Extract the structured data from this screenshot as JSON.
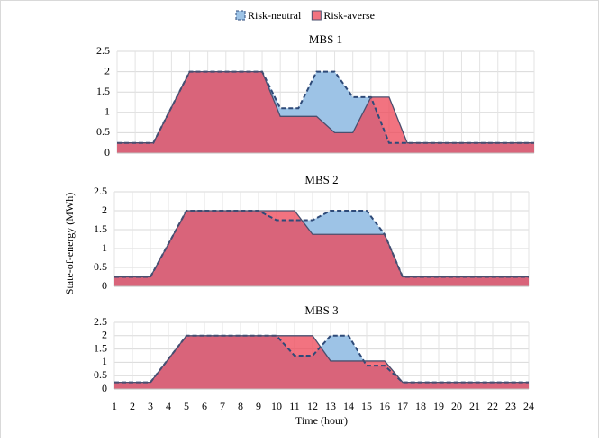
{
  "chart_data": [
    {
      "type": "area",
      "title": "MBS 1",
      "x": [
        1,
        2,
        3,
        4,
        5,
        6,
        7,
        8,
        9,
        10,
        11,
        12,
        13,
        14,
        15,
        16,
        17,
        18,
        19,
        20,
        21,
        22,
        23,
        24
      ],
      "xlim": [
        1,
        24
      ],
      "ylim": [
        0,
        2.5
      ],
      "yticks": [
        0,
        0.5,
        1,
        1.5,
        2,
        2.5
      ],
      "grid": true,
      "legend": "top",
      "series": [
        {
          "name": "Risk-neutral",
          "color": "#9dc3e6",
          "line_color": "#2e4a78",
          "line_style": "dashed",
          "values": [
            0.25,
            0.25,
            0.25,
            1.125,
            2,
            2,
            2,
            2,
            2,
            1.1,
            1.1,
            2,
            2,
            1.375,
            1.375,
            0.25,
            0.25,
            0.25,
            0.25,
            0.25,
            0.25,
            0.25,
            0.25,
            0.25
          ]
        },
        {
          "name": "Risk-averse",
          "color": "#ee4455",
          "line_color": "#4a4f6e",
          "line_style": "solid",
          "values": [
            0.25,
            0.25,
            0.25,
            1.125,
            2,
            2,
            2,
            2,
            2,
            0.9,
            0.9,
            0.9,
            0.5,
            0.5,
            1.375,
            1.375,
            0.25,
            0.25,
            0.25,
            0.25,
            0.25,
            0.25,
            0.25,
            0.25
          ]
        }
      ]
    },
    {
      "type": "area",
      "title": "MBS 2",
      "ylabel": "State-of-energy (MWh)",
      "x": [
        1,
        2,
        3,
        4,
        5,
        6,
        7,
        8,
        9,
        10,
        11,
        12,
        13,
        14,
        15,
        16,
        17,
        18,
        19,
        20,
        21,
        22,
        23,
        24
      ],
      "xlim": [
        1,
        24
      ],
      "ylim": [
        0,
        2.5
      ],
      "yticks": [
        0,
        0.5,
        1,
        1.5,
        2,
        2.5
      ],
      "grid": true,
      "series": [
        {
          "color": "#9dc3e6",
          "line_color": "#2e4a78",
          "line_style": "dashed",
          "values": [
            0.25,
            0.25,
            0.25,
            1.125,
            2,
            2,
            2,
            2,
            2,
            1.75,
            1.75,
            1.75,
            2,
            2,
            2,
            1.375,
            0.25,
            0.25,
            0.25,
            0.25,
            0.25,
            0.25,
            0.25,
            0.25
          ]
        },
        {
          "color": "#ee4455",
          "line_color": "#4a4f6e",
          "line_style": "solid",
          "values": [
            0.25,
            0.25,
            0.25,
            1.125,
            2,
            2,
            2,
            2,
            2,
            2,
            2,
            1.375,
            1.375,
            1.375,
            1.375,
            1.375,
            0.25,
            0.25,
            0.25,
            0.25,
            0.25,
            0.25,
            0.25,
            0.25
          ]
        }
      ]
    },
    {
      "type": "area",
      "title": "MBS 3",
      "xlabel": "Time (hour)",
      "x": [
        1,
        2,
        3,
        4,
        5,
        6,
        7,
        8,
        9,
        10,
        11,
        12,
        13,
        14,
        15,
        16,
        17,
        18,
        19,
        20,
        21,
        22,
        23,
        24
      ],
      "xlim": [
        1,
        24
      ],
      "xticks": [
        1,
        2,
        3,
        4,
        5,
        6,
        7,
        8,
        9,
        10,
        11,
        12,
        13,
        14,
        15,
        16,
        17,
        18,
        19,
        20,
        21,
        22,
        23,
        24
      ],
      "ylim": [
        0,
        2.5
      ],
      "yticks": [
        0,
        0.5,
        1,
        1.5,
        2,
        2.5
      ],
      "grid": true,
      "series": [
        {
          "color": "#9dc3e6",
          "line_color": "#2e4a78",
          "line_style": "dashed",
          "values": [
            0.25,
            0.25,
            0.25,
            1.125,
            2,
            2,
            2,
            2,
            2,
            2,
            1.25,
            1.25,
            2,
            2,
            0.875,
            0.875,
            0.25,
            0.25,
            0.25,
            0.25,
            0.25,
            0.25,
            0.25,
            0.25
          ]
        },
        {
          "color": "#ee4455",
          "line_color": "#4a4f6e",
          "line_style": "solid",
          "values": [
            0.25,
            0.25,
            0.25,
            1.125,
            2,
            2,
            2,
            2,
            2,
            2,
            2,
            2,
            1.05,
            1.05,
            1.05,
            1.05,
            0.25,
            0.25,
            0.25,
            0.25,
            0.25,
            0.25,
            0.25,
            0.25
          ]
        }
      ]
    }
  ]
}
